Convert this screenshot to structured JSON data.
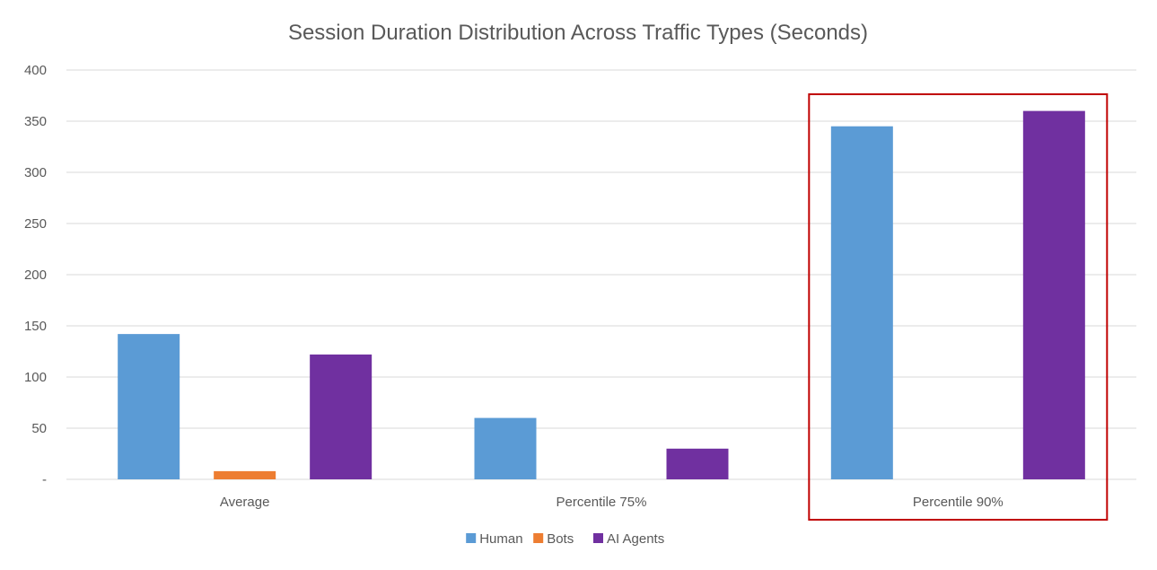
{
  "chart_data": {
    "type": "bar",
    "title": "Session Duration Distribution Across Traffic Types (Seconds)",
    "xlabel": "",
    "ylabel": "",
    "categories": [
      "Average",
      "Percentile 75%",
      "Percentile 90%"
    ],
    "series": [
      {
        "name": "Human",
        "color": "#5b9bd5",
        "values": [
          142,
          60,
          345
        ]
      },
      {
        "name": "Bots",
        "color": "#ed7d31",
        "values": [
          8,
          0,
          0
        ]
      },
      {
        "name": "AI Agents",
        "color": "#7030a0",
        "values": [
          122,
          30,
          360
        ]
      }
    ],
    "ylim": [
      0,
      400
    ],
    "yticks": [
      0,
      50,
      100,
      150,
      200,
      250,
      300,
      350,
      400
    ],
    "ytick_labels": [
      "-",
      "50",
      "100",
      "150",
      "200",
      "250",
      "300",
      "350",
      "400"
    ],
    "grid": true,
    "legend_position": "bottom",
    "highlight": {
      "category": "Percentile 90%",
      "color": "#c00000"
    }
  }
}
